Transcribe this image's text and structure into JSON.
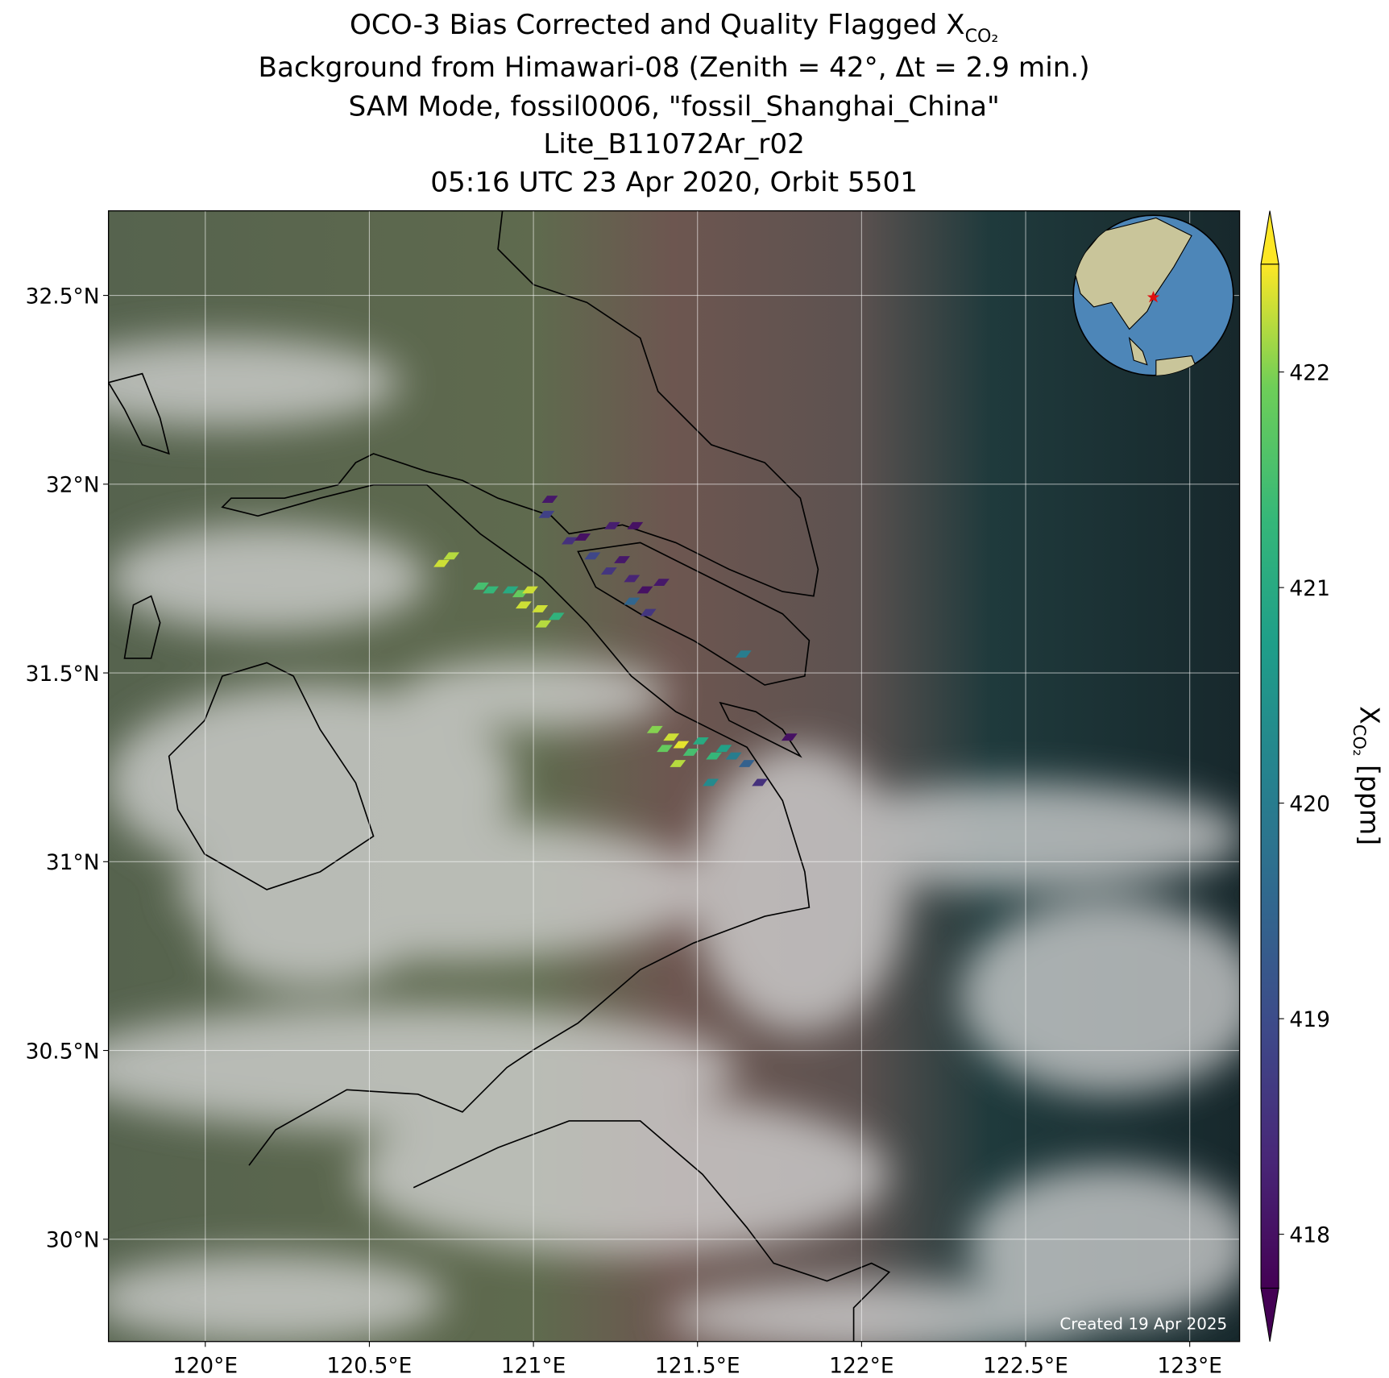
{
  "chart_data": {
    "type": "scatter",
    "title": [
      "OCO-3 Bias Corrected and Quality Flagged X",
      "Background from Himawari-08 (Zenith = 42°, Δt =  2.9 min.)",
      "SAM Mode, fossil0006, \"fossil_Shanghai_China\"",
      "Lite_B11072Ar_r02",
      "05:16 UTC 23 Apr 2020, Orbit 5501"
    ],
    "title_subscript": "CO₂",
    "xlim": [
      119.705,
      123.152
    ],
    "ylim": [
      29.729,
      32.724
    ],
    "xticks": [
      {
        "value": 120,
        "label": "120°E"
      },
      {
        "value": 120.5,
        "label": "120.5°E"
      },
      {
        "value": 121,
        "label": "121°E"
      },
      {
        "value": 121.5,
        "label": "121.5°E"
      },
      {
        "value": 122,
        "label": "122°E"
      },
      {
        "value": 122.5,
        "label": "122.5°E"
      },
      {
        "value": 123,
        "label": "123°E"
      }
    ],
    "yticks": [
      {
        "value": 30,
        "label": "30°N"
      },
      {
        "value": 30.5,
        "label": "30.5°N"
      },
      {
        "value": 31,
        "label": "31°N"
      },
      {
        "value": 31.5,
        "label": "31.5°N"
      },
      {
        "value": 32,
        "label": "32°N"
      },
      {
        "value": 32.5,
        "label": "32.5°N"
      }
    ],
    "grid": true,
    "x": [
      120.72,
      120.75,
      120.84,
      120.87,
      120.93,
      120.96,
      120.99,
      120.97,
      121.02,
      121.03,
      121.07,
      121.05,
      121.04,
      121.11,
      121.15,
      121.24,
      121.31,
      121.18,
      121.23,
      121.27,
      121.3,
      121.34,
      121.3,
      121.35,
      121.39,
      121.64,
      121.37,
      121.42,
      121.45,
      121.4,
      121.48,
      121.44,
      121.51,
      121.55,
      121.54,
      121.58,
      121.61,
      121.65,
      121.69,
      121.78
    ],
    "y": [
      31.79,
      31.81,
      31.73,
      31.72,
      31.72,
      31.71,
      31.72,
      31.68,
      31.67,
      31.63,
      31.65,
      31.96,
      31.92,
      31.85,
      31.86,
      31.89,
      31.89,
      31.81,
      31.77,
      31.8,
      31.75,
      31.72,
      31.69,
      31.66,
      31.74,
      31.55,
      31.35,
      31.33,
      31.31,
      31.3,
      31.29,
      31.26,
      31.32,
      31.28,
      31.21,
      31.3,
      31.28,
      31.26,
      31.21,
      31.33
    ],
    "values": [
      422.3,
      422.2,
      421.5,
      421.3,
      421.0,
      421.8,
      422.3,
      422.3,
      422.3,
      422.2,
      421.2,
      418.1,
      418.8,
      418.5,
      418.0,
      418.2,
      418.0,
      418.9,
      418.6,
      418.1,
      418.3,
      418.0,
      419.5,
      418.6,
      418.1,
      420.0,
      422.0,
      422.3,
      422.4,
      421.8,
      421.5,
      422.2,
      421.0,
      421.3,
      420.3,
      420.8,
      420.0,
      419.4,
      418.5,
      418.0
    ],
    "clim": [
      417.75,
      422.5
    ],
    "colormap": "viridis",
    "cbar_ticks": [
      418,
      419,
      420,
      421,
      422
    ],
    "cbar_label": "X",
    "cbar_label_subscript": "CO₂",
    "cbar_label_unit": " [ppm]",
    "annotation": "Created 19 Apr 2025"
  }
}
